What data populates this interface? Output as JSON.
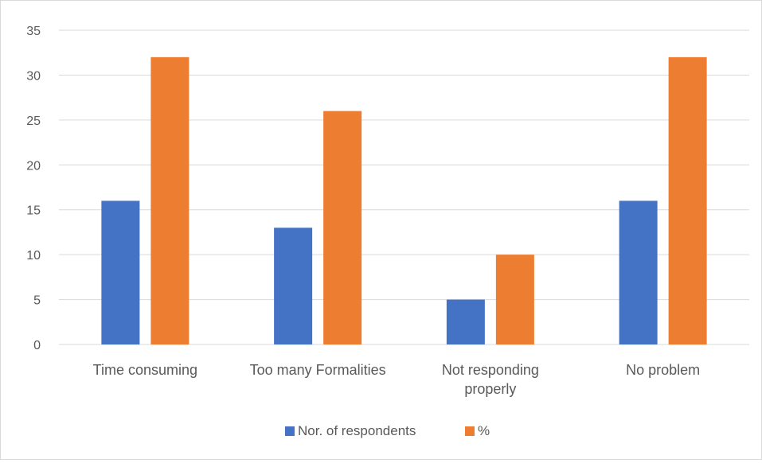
{
  "chart_data": {
    "type": "bar",
    "title": "",
    "xlabel": "",
    "ylabel": "",
    "categories": [
      [
        "Time consuming"
      ],
      [
        "Too many Formalities"
      ],
      [
        "Not responding",
        "properly"
      ],
      [
        "No problem"
      ]
    ],
    "series": [
      {
        "name": "Nor. of respondents",
        "values": [
          16,
          13,
          5,
          16
        ],
        "color": "#4472c4"
      },
      {
        "name": "%",
        "values": [
          32,
          26,
          10,
          32
        ],
        "color": "#ed7d31"
      }
    ],
    "ylim": [
      0,
      35
    ],
    "yticks": [
      0,
      5,
      10,
      15,
      20,
      25,
      30,
      35
    ],
    "grid": true,
    "legend": "bottom",
    "gridColor": "#d9d9d9",
    "textColor": "#595959"
  }
}
